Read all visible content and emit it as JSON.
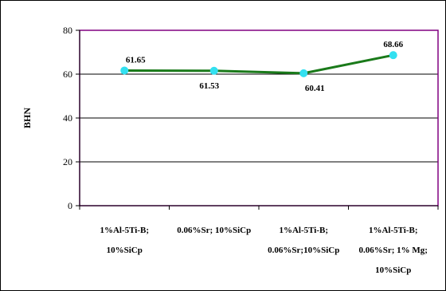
{
  "chart_data": {
    "type": "line",
    "title": "",
    "xlabel": "",
    "ylabel": "BHN",
    "ylim": [
      0,
      80
    ],
    "yticks": [
      0,
      20,
      40,
      60,
      80
    ],
    "grid": true,
    "categories": [
      [
        "1%Al-5Ti-B;",
        "10%SiCp"
      ],
      [
        "0.06%Sr; 10%SiCp"
      ],
      [
        "1%Al-5Ti-B;",
        "0.06%Sr;10%SiCp"
      ],
      [
        "1%Al-5Ti-B;",
        "0.06%Sr; 1% Mg;",
        "10%SiCp"
      ]
    ],
    "series": [
      {
        "values": [
          61.65,
          61.53,
          60.41,
          68.66
        ],
        "labels": [
          "61.65",
          "61.53",
          "60.41",
          "68.66"
        ]
      }
    ],
    "colors": {
      "line": "#1a7a1a",
      "marker": "#33e0f0",
      "plot_border": "#800080",
      "gridline": "#000000"
    }
  }
}
